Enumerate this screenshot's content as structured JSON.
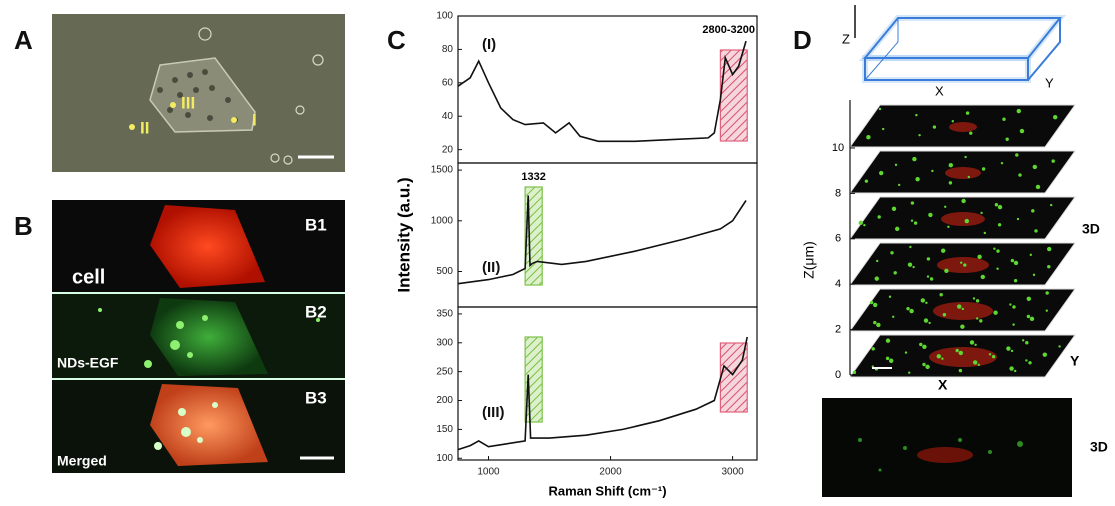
{
  "panels": {
    "A": {
      "letter": "A",
      "regions": [
        "I",
        "II",
        "III"
      ]
    },
    "B": {
      "letter": "B",
      "subpanels": [
        "B1",
        "B2",
        "B3"
      ],
      "captions": [
        "cell",
        "NDs-EGF",
        "Merged"
      ]
    },
    "C": {
      "letter": "C"
    },
    "D": {
      "letter": "D",
      "box_axes": [
        "Z",
        "X",
        "Y"
      ],
      "z_axis_label": "Z(μm)",
      "z_ticks": [
        0,
        2,
        4,
        6,
        8,
        10
      ],
      "stack_label": "3D",
      "stack_axes": [
        "X",
        "Y"
      ],
      "side_label": "3D"
    }
  },
  "chart_data": [
    {
      "type": "line",
      "label": "(I)",
      "color": "#111111",
      "x": [
        750,
        850,
        920,
        1000,
        1100,
        1200,
        1300,
        1450,
        1550,
        1660,
        1750,
        1900,
        2200,
        2500,
        2800,
        2850,
        2900,
        2940,
        3000,
        3050,
        3110
      ],
      "values": [
        58,
        63,
        73,
        60,
        45,
        38,
        35,
        36,
        30,
        36,
        28,
        25,
        25,
        26,
        27,
        30,
        50,
        75,
        65,
        70,
        85
      ],
      "xlim": [
        750,
        3200
      ],
      "ylim": [
        12,
        100
      ],
      "yticks": [
        20,
        40,
        60,
        80,
        100
      ],
      "regions": [
        {
          "xlim": [
            2900,
            3120
          ],
          "color": "#e0607a"
        }
      ],
      "region_label": "2800-3200"
    },
    {
      "type": "line",
      "label": "(II)",
      "color": "#111111",
      "ylabel": "Intensity (a.u.)",
      "x": [
        750,
        1000,
        1200,
        1300,
        1325,
        1340,
        1360,
        1400,
        1600,
        1800,
        2200,
        2600,
        2900,
        3000,
        3110
      ],
      "values": [
        380,
        420,
        470,
        530,
        1250,
        560,
        580,
        600,
        570,
        600,
        700,
        820,
        920,
        1000,
        1200
      ],
      "xlim": [
        750,
        3200
      ],
      "ylim": [
        150,
        1570
      ],
      "yticks": [
        500,
        1000,
        1500
      ],
      "regions": [
        {
          "xlim": [
            1300,
            1440
          ],
          "color": "#7cc24a"
        }
      ],
      "region_label": "1332"
    },
    {
      "type": "line",
      "label": "(III)",
      "color": "#111111",
      "xlabel": "Raman Shift (cm⁻¹)",
      "x": [
        750,
        850,
        920,
        1000,
        1150,
        1300,
        1325,
        1345,
        1500,
        1800,
        2100,
        2400,
        2700,
        2850,
        2930,
        3000,
        3080,
        3120
      ],
      "values": [
        115,
        122,
        130,
        120,
        125,
        130,
        245,
        135,
        135,
        140,
        150,
        165,
        185,
        200,
        260,
        245,
        270,
        310
      ],
      "xlim": [
        750,
        3200
      ],
      "xticks": [
        1000,
        2000,
        3000
      ],
      "ylim": [
        97,
        362
      ],
      "yticks": [
        100,
        150,
        200,
        250,
        300,
        350
      ],
      "regions": [
        {
          "xlim": [
            1300,
            1440
          ],
          "color": "#7cc24a"
        },
        {
          "xlim": [
            2900,
            3120
          ],
          "color": "#e0607a"
        }
      ]
    }
  ]
}
